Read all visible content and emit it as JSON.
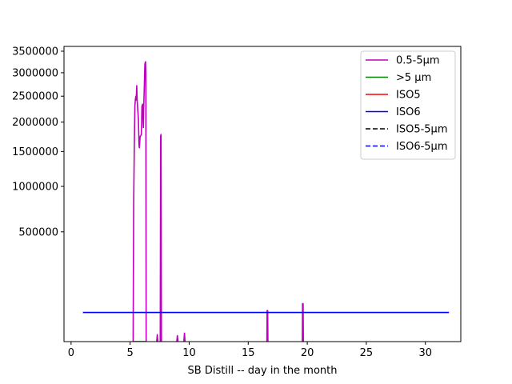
{
  "chart_data": {
    "type": "line",
    "title": "",
    "xlabel": "SB Distill -- day in the month",
    "ylabel": "",
    "xlim": [
      -0.6,
      33.0
    ],
    "ylim": [
      0,
      3500000
    ],
    "y_scale": "sqrt",
    "x_ticks": [
      0,
      5,
      10,
      15,
      20,
      25,
      30
    ],
    "x_tick_labels": [
      "0",
      "5",
      "10",
      "15",
      "20",
      "25",
      "30"
    ],
    "y_ticks": [
      500000,
      1000000,
      1500000,
      2000000,
      2500000,
      3000000,
      3500000
    ],
    "y_tick_labels": [
      "500000",
      "1000000",
      "1500000",
      "2000000",
      "2500000",
      "3000000",
      "3500000"
    ],
    "legend_position": "top-right",
    "grid": false,
    "series": [
      {
        "name": "0.5-5μm",
        "color": "#bf00bf",
        "style": "solid",
        "segments": [
          [
            [
              5.25,
              0
            ],
            [
              5.3,
              800000
            ],
            [
              5.35,
              1500000
            ],
            [
              5.4,
              2300000
            ],
            [
              5.45,
              2450000
            ],
            [
              5.5,
              2500000
            ],
            [
              5.52,
              2420000
            ],
            [
              5.56,
              2720000
            ],
            [
              5.6,
              2400000
            ],
            [
              5.7,
              2050000
            ],
            [
              5.75,
              1620000
            ],
            [
              5.78,
              1560000
            ],
            [
              5.85,
              1750000
            ],
            [
              5.9,
              1760000
            ],
            [
              5.95,
              1780000
            ],
            [
              6.0,
              2300000
            ],
            [
              6.05,
              2340000
            ],
            [
              6.1,
              2000000
            ],
            [
              6.12,
              1900000
            ],
            [
              6.15,
              2250000
            ],
            [
              6.2,
              2700000
            ],
            [
              6.25,
              3200000
            ],
            [
              6.3,
              3250000
            ],
            [
              6.33,
              3000000
            ],
            [
              6.36,
              0
            ]
          ],
          [
            [
              7.55,
              0
            ],
            [
              7.58,
              1750000
            ],
            [
              7.62,
              1780000
            ],
            [
              7.65,
              0
            ]
          ],
          [
            [
              7.25,
              0
            ],
            [
              7.3,
              2000
            ],
            [
              7.35,
              0
            ]
          ],
          [
            [
              8.95,
              0
            ],
            [
              9.0,
              1500
            ],
            [
              9.05,
              0
            ]
          ],
          [
            [
              9.55,
              0
            ],
            [
              9.6,
              3000
            ],
            [
              9.65,
              0
            ]
          ],
          [
            [
              16.58,
              0
            ],
            [
              16.6,
              40000
            ],
            [
              16.65,
              40000
            ],
            [
              16.67,
              0
            ]
          ],
          [
            [
              19.58,
              0
            ],
            [
              19.6,
              60000
            ],
            [
              19.65,
              60000
            ],
            [
              19.67,
              0
            ]
          ]
        ]
      },
      {
        "name": ">5 μm",
        "color": "#008000",
        "style": "solid",
        "segments": [
          [
            [
              5.3,
              0
            ],
            [
              6.35,
              0
            ]
          ]
        ]
      },
      {
        "name": "ISO5",
        "color": "#ff0000",
        "style": "solid",
        "segments": []
      },
      {
        "name": "ISO6",
        "color": "#0000ff",
        "style": "solid",
        "segments": [
          [
            [
              1,
              35200
            ],
            [
              32,
              35200
            ]
          ]
        ]
      },
      {
        "name": "ISO5-5μm",
        "color": "#000000",
        "style": "dashed",
        "segments": []
      },
      {
        "name": "ISO6-5μm",
        "color": "#0000ff",
        "style": "dashed",
        "segments": []
      }
    ]
  }
}
